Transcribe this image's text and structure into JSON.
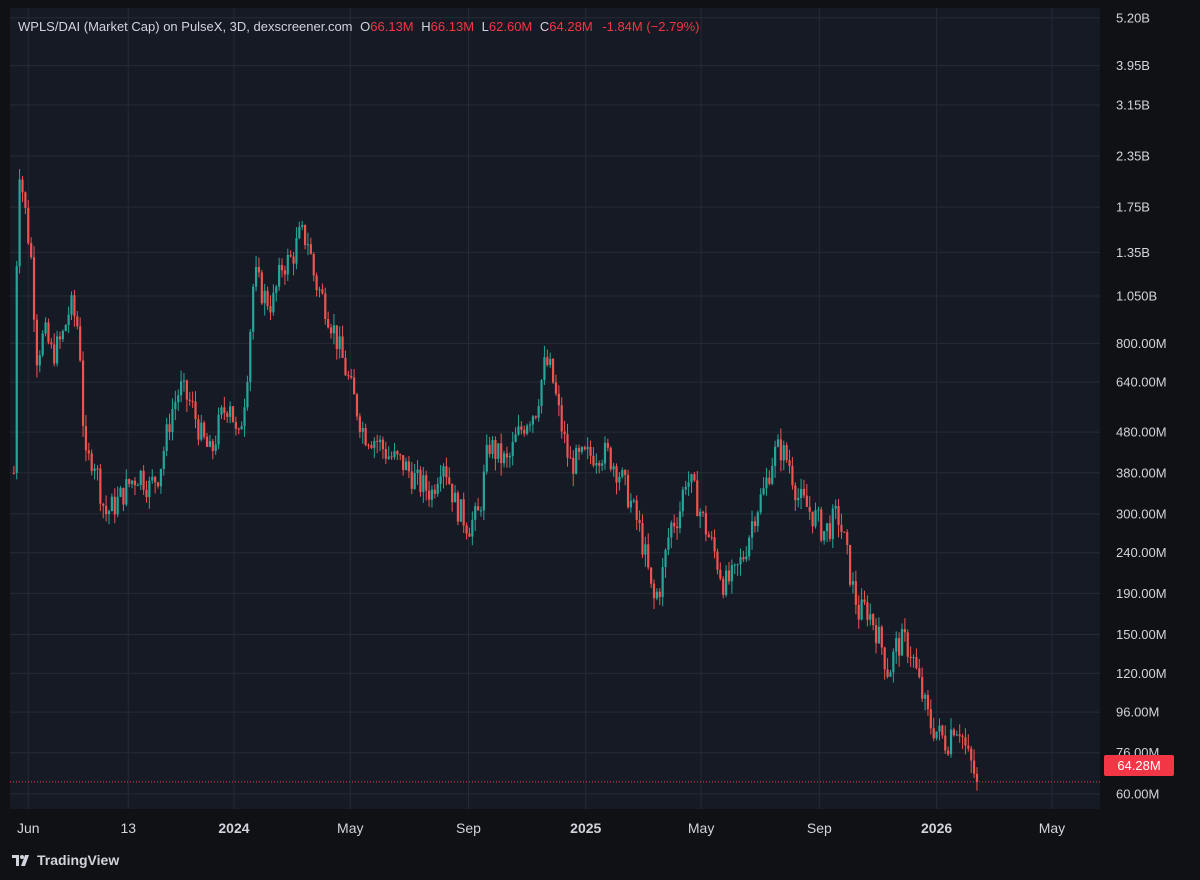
{
  "header": {
    "symbol": "WPLS/DAI (Market Cap) on PulseX, 3D, dexscreener.com",
    "open_label": "O",
    "open_value": "66.13M",
    "high_label": "H",
    "high_value": "66.13M",
    "low_label": "L",
    "low_value": "62.60M",
    "close_label": "C",
    "close_value": "64.28M",
    "change": "-1.84M (−2.79%)"
  },
  "logo": {
    "text": "TradingView",
    "icon": "tradingview-logo-icon"
  },
  "colors": {
    "background": "#161a25",
    "frame": "#0f1115",
    "grid": "#262a35",
    "up": "#26a69a",
    "down": "#ef5350",
    "price_line": "#f23645",
    "text": "#d1d4dc"
  },
  "chart_data": {
    "type": "candlestick",
    "title": "WPLS/DAI (Market Cap) on PulseX, 3D, dexscreener.com",
    "y_scale": "log",
    "ylim": [
      55000000,
      5500000000
    ],
    "x_range": [
      "2023-05-13",
      "2026-06-20"
    ],
    "y_ticks": [
      {
        "label": "5.20B",
        "value": 5200000000
      },
      {
        "label": "3.95B",
        "value": 3950000000
      },
      {
        "label": "3.15B",
        "value": 3150000000
      },
      {
        "label": "2.35B",
        "value": 2350000000
      },
      {
        "label": "1.75B",
        "value": 1750000000
      },
      {
        "label": "1.35B",
        "value": 1350000000
      },
      {
        "label": "1.050B",
        "value": 1050000000
      },
      {
        "label": "800.00M",
        "value": 800000000
      },
      {
        "label": "640.00M",
        "value": 640000000
      },
      {
        "label": "480.00M",
        "value": 480000000
      },
      {
        "label": "380.00M",
        "value": 380000000
      },
      {
        "label": "300.00M",
        "value": 300000000
      },
      {
        "label": "240.00M",
        "value": 240000000
      },
      {
        "label": "190.00M",
        "value": 190000000
      },
      {
        "label": "150.00M",
        "value": 150000000
      },
      {
        "label": "120.00M",
        "value": 120000000
      },
      {
        "label": "96.00M",
        "value": 96000000
      },
      {
        "label": "76.00M",
        "value": 76000000
      },
      {
        "label": "60.00M",
        "value": 60000000
      }
    ],
    "x_ticks": [
      {
        "label": "Jun",
        "date": "2023-06-01",
        "bold": false
      },
      {
        "label": "13",
        "date": "2023-09-13",
        "bold": false
      },
      {
        "label": "2024",
        "date": "2024-01-01",
        "bold": true
      },
      {
        "label": "May",
        "date": "2024-05-01",
        "bold": false
      },
      {
        "label": "Sep",
        "date": "2024-09-01",
        "bold": false
      },
      {
        "label": "2025",
        "date": "2025-01-01",
        "bold": true
      },
      {
        "label": "May",
        "date": "2025-05-01",
        "bold": false
      },
      {
        "label": "Sep",
        "date": "2025-09-01",
        "bold": false
      },
      {
        "label": "2026",
        "date": "2026-01-01",
        "bold": true
      },
      {
        "label": "May",
        "date": "2026-05-01",
        "bold": false
      }
    ],
    "last_price": {
      "value": 64280000,
      "label": "64.28M"
    },
    "anchors": [
      [
        "2023-05-17",
        380000000
      ],
      [
        "2023-05-20",
        1300000000
      ],
      [
        "2023-05-23",
        2200000000
      ],
      [
        "2023-05-29",
        1700000000
      ],
      [
        "2023-06-04",
        1300000000
      ],
      [
        "2023-06-10",
        750000000
      ],
      [
        "2023-06-18",
        850000000
      ],
      [
        "2023-06-26",
        750000000
      ],
      [
        "2023-07-06",
        820000000
      ],
      [
        "2023-07-15",
        1000000000
      ],
      [
        "2023-07-24",
        860000000
      ],
      [
        "2023-07-30",
        400000000
      ],
      [
        "2023-08-08",
        420000000
      ],
      [
        "2023-08-20",
        300000000
      ],
      [
        "2023-09-01",
        320000000
      ],
      [
        "2023-09-15",
        360000000
      ],
      [
        "2023-09-25",
        380000000
      ],
      [
        "2023-10-05",
        350000000
      ],
      [
        "2023-10-15",
        380000000
      ],
      [
        "2023-10-28",
        540000000
      ],
      [
        "2023-11-06",
        620000000
      ],
      [
        "2023-11-18",
        560000000
      ],
      [
        "2023-11-28",
        470000000
      ],
      [
        "2023-12-08",
        420000000
      ],
      [
        "2023-12-18",
        520000000
      ],
      [
        "2023-12-28",
        580000000
      ],
      [
        "2024-01-05",
        440000000
      ],
      [
        "2024-01-14",
        640000000
      ],
      [
        "2024-01-22",
        1200000000
      ],
      [
        "2024-02-01",
        1050000000
      ],
      [
        "2024-02-10",
        1000000000
      ],
      [
        "2024-02-20",
        1250000000
      ],
      [
        "2024-03-01",
        1300000000
      ],
      [
        "2024-03-10",
        1500000000
      ],
      [
        "2024-03-18",
        1450000000
      ],
      [
        "2024-03-25",
        1150000000
      ],
      [
        "2024-04-05",
        1000000000
      ],
      [
        "2024-04-15",
        850000000
      ],
      [
        "2024-04-25",
        700000000
      ],
      [
        "2024-05-05",
        580000000
      ],
      [
        "2024-05-15",
        480000000
      ],
      [
        "2024-05-28",
        460000000
      ],
      [
        "2024-06-10",
        420000000
      ],
      [
        "2024-06-25",
        400000000
      ],
      [
        "2024-07-10",
        360000000
      ],
      [
        "2024-07-25",
        340000000
      ],
      [
        "2024-08-05",
        420000000
      ],
      [
        "2024-08-18",
        320000000
      ],
      [
        "2024-09-01",
        280000000
      ],
      [
        "2024-09-12",
        300000000
      ],
      [
        "2024-09-22",
        450000000
      ],
      [
        "2024-10-02",
        420000000
      ],
      [
        "2024-10-12",
        400000000
      ],
      [
        "2024-10-20",
        460000000
      ],
      [
        "2024-11-01",
        520000000
      ],
      [
        "2024-11-10",
        550000000
      ],
      [
        "2024-11-20",
        720000000
      ],
      [
        "2024-11-26",
        680000000
      ],
      [
        "2024-12-05",
        520000000
      ],
      [
        "2024-12-15",
        400000000
      ],
      [
        "2024-12-25",
        410000000
      ],
      [
        "2025-01-05",
        420000000
      ],
      [
        "2025-01-15",
        430000000
      ],
      [
        "2025-01-25",
        420000000
      ],
      [
        "2025-02-05",
        380000000
      ],
      [
        "2025-02-15",
        330000000
      ],
      [
        "2025-02-25",
        280000000
      ],
      [
        "2025-03-05",
        230000000
      ],
      [
        "2025-03-12",
        180000000
      ],
      [
        "2025-03-20",
        200000000
      ],
      [
        "2025-03-30",
        280000000
      ],
      [
        "2025-04-08",
        300000000
      ],
      [
        "2025-04-15",
        370000000
      ],
      [
        "2025-04-22",
        350000000
      ],
      [
        "2025-05-05",
        280000000
      ],
      [
        "2025-05-15",
        240000000
      ],
      [
        "2025-05-25",
        200000000
      ],
      [
        "2025-06-05",
        210000000
      ],
      [
        "2025-06-15",
        240000000
      ],
      [
        "2025-06-25",
        300000000
      ],
      [
        "2025-07-05",
        340000000
      ],
      [
        "2025-07-15",
        420000000
      ],
      [
        "2025-07-22",
        440000000
      ],
      [
        "2025-08-01",
        400000000
      ],
      [
        "2025-08-10",
        330000000
      ],
      [
        "2025-08-20",
        310000000
      ],
      [
        "2025-08-30",
        290000000
      ],
      [
        "2025-09-05",
        270000000
      ],
      [
        "2025-09-12",
        280000000
      ],
      [
        "2025-09-20",
        300000000
      ],
      [
        "2025-09-28",
        250000000
      ],
      [
        "2025-10-05",
        200000000
      ],
      [
        "2025-10-12",
        170000000
      ],
      [
        "2025-10-20",
        175000000
      ],
      [
        "2025-10-28",
        160000000
      ],
      [
        "2025-11-05",
        140000000
      ],
      [
        "2025-11-12",
        120000000
      ],
      [
        "2025-11-20",
        140000000
      ],
      [
        "2025-11-28",
        145000000
      ],
      [
        "2025-12-06",
        135000000
      ],
      [
        "2025-12-15",
        110000000
      ],
      [
        "2025-12-25",
        90000000
      ],
      [
        "2026-01-03",
        85000000
      ],
      [
        "2026-01-12",
        80000000
      ],
      [
        "2026-01-18",
        90000000
      ],
      [
        "2026-01-25",
        88000000
      ],
      [
        "2026-02-02",
        75000000
      ],
      [
        "2026-02-07",
        70000000
      ],
      [
        "2026-02-12",
        64280000
      ]
    ]
  }
}
